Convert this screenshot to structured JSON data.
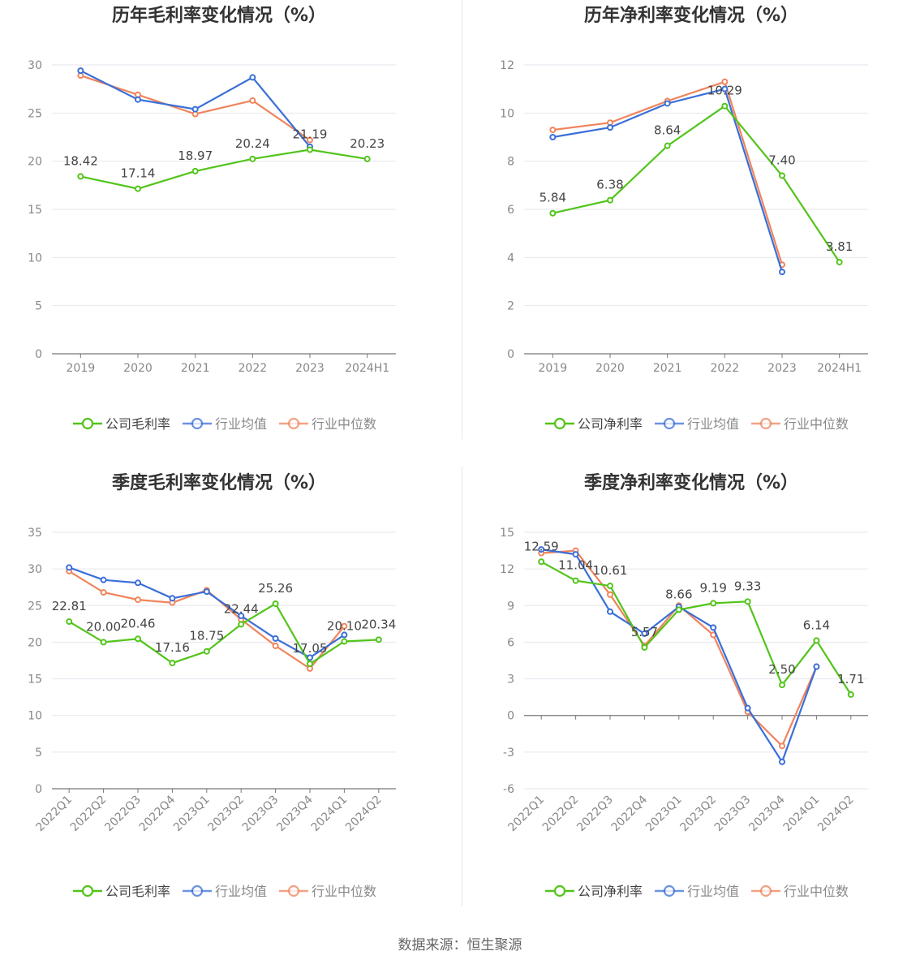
{
  "colors": {
    "company": "#52c41a",
    "avg": "#3a6fd8",
    "median": "#f0845c",
    "grid": "#e6e6ee",
    "axis": "#888888",
    "label": "#555555",
    "title": "#333333"
  },
  "source": "数据来源：恒生聚源",
  "chart_data": [
    {
      "type": "line",
      "title": "历年毛利率变化情况（%）",
      "categories": [
        "2019",
        "2020",
        "2021",
        "2022",
        "2023",
        "2024H1"
      ],
      "ylim": [
        0,
        30
      ],
      "yticks": [
        0,
        5,
        10,
        15,
        20,
        25,
        30
      ],
      "grid": true,
      "legend_position": "bottom",
      "series": [
        {
          "name": "公司毛利率",
          "role": "company",
          "values": [
            18.42,
            17.14,
            18.97,
            20.24,
            21.19,
            20.23
          ],
          "labels": [
            "18.42",
            "17.14",
            "18.97",
            "20.24",
            "21.19",
            "20.23"
          ]
        },
        {
          "name": "行业均值",
          "role": "avg",
          "values": [
            29.4,
            26.4,
            25.4,
            28.7,
            21.5,
            null
          ]
        },
        {
          "name": "行业中位数",
          "role": "median",
          "values": [
            28.9,
            26.9,
            24.9,
            26.3,
            22.2,
            null
          ]
        }
      ]
    },
    {
      "type": "line",
      "title": "历年净利率变化情况（%）",
      "categories": [
        "2019",
        "2020",
        "2021",
        "2022",
        "2023",
        "2024H1"
      ],
      "ylim": [
        0,
        12
      ],
      "yticks": [
        0,
        2,
        4,
        6,
        8,
        10,
        12
      ],
      "grid": true,
      "legend_position": "bottom",
      "series": [
        {
          "name": "公司净利率",
          "role": "company",
          "values": [
            5.84,
            6.38,
            8.64,
            10.29,
            7.4,
            3.81
          ],
          "labels": [
            "5.84",
            "6.38",
            "8.64",
            "10.29",
            "7.40",
            "3.81"
          ]
        },
        {
          "name": "行业均值",
          "role": "avg",
          "values": [
            9.0,
            9.4,
            10.4,
            11.0,
            3.4,
            null
          ]
        },
        {
          "name": "行业中位数",
          "role": "median",
          "values": [
            9.3,
            9.6,
            10.5,
            11.3,
            3.7,
            null
          ]
        }
      ]
    },
    {
      "type": "line",
      "title": "季度毛利率变化情况（%）",
      "categories": [
        "2022Q1",
        "2022Q2",
        "2022Q3",
        "2022Q4",
        "2023Q1",
        "2023Q2",
        "2023Q3",
        "2023Q4",
        "2024Q1",
        "2024Q2"
      ],
      "ylim": [
        0,
        35
      ],
      "yticks": [
        0,
        5,
        10,
        15,
        20,
        25,
        30,
        35
      ],
      "grid": true,
      "legend_position": "bottom",
      "series": [
        {
          "name": "公司毛利率",
          "role": "company",
          "values": [
            22.81,
            20.0,
            20.46,
            17.16,
            18.75,
            22.44,
            25.26,
            17.05,
            20.1,
            20.34
          ],
          "labels": [
            "22.81",
            "20.00",
            "20.46",
            "17.16",
            "18.75",
            "22.44",
            "25.26",
            "17.05",
            "20.10",
            "20.34"
          ]
        },
        {
          "name": "行业均值",
          "role": "avg",
          "values": [
            30.2,
            28.5,
            28.1,
            26.0,
            26.9,
            23.6,
            20.5,
            17.9,
            21.0,
            null
          ]
        },
        {
          "name": "行业中位数",
          "role": "median",
          "values": [
            29.7,
            26.8,
            25.8,
            25.4,
            27.1,
            23.1,
            19.5,
            16.4,
            22.2,
            null
          ]
        }
      ]
    },
    {
      "type": "line",
      "title": "季度净利率变化情况（%）",
      "categories": [
        "2022Q1",
        "2022Q2",
        "2022Q3",
        "2022Q4",
        "2023Q1",
        "2023Q2",
        "2023Q3",
        "2023Q4",
        "2024Q1",
        "2024Q2"
      ],
      "ylim": [
        -6,
        15
      ],
      "yticks": [
        -6,
        -3,
        0,
        3,
        6,
        9,
        12,
        15
      ],
      "grid": true,
      "legend_position": "bottom",
      "series": [
        {
          "name": "公司净利率",
          "role": "company",
          "values": [
            12.59,
            11.04,
            10.61,
            5.57,
            8.66,
            9.19,
            9.33,
            2.5,
            6.14,
            1.71
          ],
          "labels": [
            "12.59",
            "11.04",
            "10.61",
            "5.57",
            "8.66",
            "9.19",
            "9.33",
            "2.50",
            "6.14",
            "1.71"
          ]
        },
        {
          "name": "行业均值",
          "role": "avg",
          "values": [
            13.6,
            13.2,
            8.5,
            6.7,
            8.9,
            7.2,
            0.6,
            -3.8,
            4.0,
            null
          ]
        },
        {
          "name": "行业中位数",
          "role": "median",
          "values": [
            13.3,
            13.5,
            9.9,
            5.7,
            9.0,
            6.6,
            0.3,
            -2.5,
            4.0,
            null
          ]
        }
      ]
    }
  ]
}
